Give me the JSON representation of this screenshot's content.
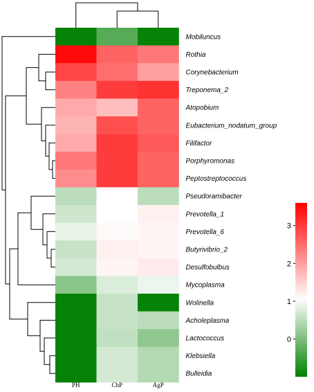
{
  "chart_data": {
    "type": "heatmap",
    "columns": [
      "PH",
      "ChP",
      "AgP"
    ],
    "rows": [
      "Mobiluncus",
      "Rothia",
      "Corynebacterium",
      "Treponema_2",
      "Atopobium",
      "Eubacterium_nodatum_group",
      "Filifactor",
      "Porphyromonas",
      "Peptostreptococcus",
      "Pseudoramibacter",
      "Prevotella_1",
      "Prevotella_6",
      "Butyrivibrio_2",
      "Desulfobulbus",
      "Mycoplasma",
      "Wolinella",
      "Acholeplasma",
      "Lactococcus",
      "Klebsiella",
      "Bulleidia"
    ],
    "values": [
      [
        -0.95,
        -0.3,
        -0.95
      ],
      [
        3.5,
        2.6,
        2.4
      ],
      [
        2.9,
        2.5,
        2.0
      ],
      [
        2.3,
        3.0,
        3.1
      ],
      [
        1.9,
        1.7,
        2.6
      ],
      [
        1.8,
        2.8,
        2.6
      ],
      [
        1.9,
        3.0,
        2.7
      ],
      [
        2.4,
        3.0,
        2.6
      ],
      [
        2.2,
        3.0,
        2.6
      ],
      [
        0.5,
        1.05,
        0.5
      ],
      [
        0.65,
        1.05,
        1.2
      ],
      [
        0.85,
        1.1,
        1.15
      ],
      [
        0.6,
        1.2,
        1.15
      ],
      [
        0.7,
        1.15,
        1.25
      ],
      [
        0.1,
        0.75,
        0.9
      ],
      [
        -0.95,
        0.6,
        -0.95
      ],
      [
        -0.95,
        0.6,
        0.5
      ],
      [
        -0.95,
        0.55,
        0.15
      ],
      [
        -0.95,
        0.7,
        0.45
      ],
      [
        -0.95,
        0.7,
        0.45
      ]
    ],
    "color_scale": {
      "min": -1.0,
      "max": 3.6,
      "low_color": "#008000",
      "mid_color": "#ffffff",
      "high_color": "#ff0000",
      "mid_value": 1.05
    },
    "colorbar_ticks": [
      "0",
      "1",
      "2",
      "3"
    ],
    "colorbar_tick_values": [
      0,
      1,
      2,
      3
    ]
  }
}
